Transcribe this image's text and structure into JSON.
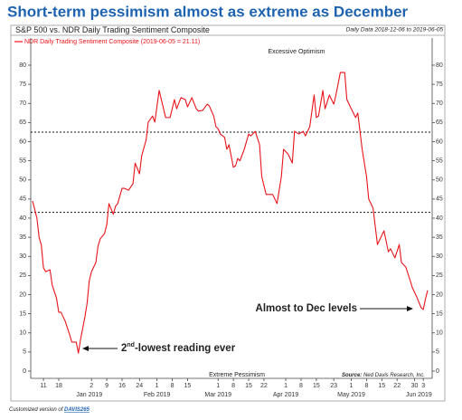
{
  "chart_data": {
    "type": "line",
    "title": "Short-term pessimism almost as extreme as December",
    "subtitle": "S&P 500 vs. NDR Daily Trading Sentiment Composite",
    "date_range": "Daily Data 2018-12-06 to 2019-06-05",
    "source_label": "Source:",
    "source": "Ned Davis Research, Inc.",
    "footer_prefix": "Customized version of",
    "footer_link": "DAVIS265",
    "top_label": "Excessive Optimism",
    "bottom_label": "Extreme Pessimism",
    "annotations": {
      "recent": "Almost to Dec levels",
      "low_num": "2",
      "low_sup": "nd",
      "low_rest": "-lowest reading ever"
    },
    "x": [
      "2018-12-06",
      "2018-12-08",
      "2018-12-09",
      "2018-12-10",
      "2018-12-11",
      "2018-12-12",
      "2018-12-14",
      "2018-12-15",
      "2018-12-17",
      "2018-12-18",
      "2018-12-19",
      "2018-12-21",
      "2018-12-23",
      "2018-12-24",
      "2018-12-26",
      "2018-12-27",
      "2018-12-28",
      "2018-12-30",
      "2018-12-31",
      "2019-01-01",
      "2019-01-02",
      "2019-01-04",
      "2019-01-05",
      "2019-01-06",
      "2019-01-08",
      "2019-01-09",
      "2019-01-10",
      "2019-01-12",
      "2019-01-13",
      "2019-01-14",
      "2019-01-16",
      "2019-01-17",
      "2019-01-19",
      "2019-01-21",
      "2019-01-22",
      "2019-01-24",
      "2019-01-25",
      "2019-01-27",
      "2019-01-28",
      "2019-01-30",
      "2019-01-31",
      "2019-02-02",
      "2019-02-04",
      "2019-02-05",
      "2019-02-07",
      "2019-02-09",
      "2019-02-10",
      "2019-02-12",
      "2019-02-14",
      "2019-02-15",
      "2019-02-17",
      "2019-02-19",
      "2019-02-20",
      "2019-02-22",
      "2019-02-24",
      "2019-02-25",
      "2019-02-27",
      "2019-02-28",
      "2019-03-01",
      "2019-03-02",
      "2019-03-04",
      "2019-03-05",
      "2019-03-06",
      "2019-03-08",
      "2019-03-09",
      "2019-03-10",
      "2019-03-11",
      "2019-03-13",
      "2019-03-15",
      "2019-03-16",
      "2019-03-18",
      "2019-03-20",
      "2019-03-21",
      "2019-03-23",
      "2019-03-25",
      "2019-03-26",
      "2019-03-28",
      "2019-03-30",
      "2019-03-31",
      "2019-04-02",
      "2019-04-04",
      "2019-04-05",
      "2019-04-07",
      "2019-04-09",
      "2019-04-10",
      "2019-04-12",
      "2019-04-14",
      "2019-04-15",
      "2019-04-16",
      "2019-04-18",
      "2019-04-19",
      "2019-04-21",
      "2019-04-23",
      "2019-04-24",
      "2019-04-26",
      "2019-04-28",
      "2019-04-29",
      "2019-05-01",
      "2019-05-03",
      "2019-05-04",
      "2019-05-06",
      "2019-05-08",
      "2019-05-09",
      "2019-05-11",
      "2019-05-13",
      "2019-05-14",
      "2019-05-16",
      "2019-05-18",
      "2019-05-19",
      "2019-05-21",
      "2019-05-23",
      "2019-05-24",
      "2019-05-26",
      "2019-05-28",
      "2019-05-29",
      "2019-05-31",
      "2019-06-02",
      "2019-06-03",
      "2019-06-04",
      "2019-06-05"
    ],
    "series": [
      {
        "name": "NDR Daily Trading Sentiment Composite (2019-06-05 = 21.11)",
        "color": "#e8141b",
        "values": [
          44.5,
          40,
          35,
          33,
          27,
          26,
          26.5,
          22.5,
          19,
          15.4,
          15.4,
          13,
          9.5,
          7.6,
          7.6,
          4.7,
          8.3,
          14.2,
          17.8,
          23.7,
          26,
          28.4,
          32.7,
          34.6,
          36,
          38.3,
          43.8,
          41,
          43.1,
          43.8,
          47.8,
          47.8,
          47.3,
          49,
          54.4,
          51.6,
          56.3,
          60.4,
          65.1,
          66.7,
          65.1,
          73.4,
          68.6,
          66.3,
          66.3,
          71,
          68.6,
          71.5,
          71,
          69.1,
          71.5,
          68.6,
          68,
          68.2,
          69.8,
          69.3,
          66.7,
          63.9,
          63.4,
          62,
          61.1,
          58,
          59.2,
          53.3,
          53.7,
          55.6,
          55,
          58,
          62,
          61.5,
          62.7,
          59.2,
          50.9,
          46.2,
          46.2,
          46.2,
          43.8,
          50.9,
          58,
          56.8,
          54.4,
          62.7,
          62,
          62.7,
          61.5,
          63.9,
          72.2,
          66.3,
          66.7,
          73.4,
          68.6,
          72.2,
          69.8,
          72.2,
          78.1,
          78.1,
          71,
          68.6,
          66.3,
          67.5,
          58,
          50.9,
          45,
          42.6,
          33.1,
          34.3,
          36.7,
          31.2,
          32,
          29.6,
          33.1,
          28.4,
          27.2,
          23.7,
          21.8,
          19.4,
          16.6,
          16.1,
          18.9,
          21.11
        ]
      }
    ],
    "reference_lines": [
      62.5,
      41.5
    ],
    "xlim": [
      "2018-12-06",
      "2019-06-05"
    ],
    "xticks": [
      {
        "value": "2018-12-11",
        "label": "11"
      },
      {
        "value": "2018-12-18",
        "label": "18"
      },
      {
        "value": "2019-01-02",
        "label": "2"
      },
      {
        "value": "2019-01-09",
        "label": "9"
      },
      {
        "value": "2019-01-16",
        "label": "16"
      },
      {
        "value": "2019-01-24",
        "label": "24"
      },
      {
        "value": "2019-02-01",
        "label": "1"
      },
      {
        "value": "2019-02-08",
        "label": "8"
      },
      {
        "value": "2019-02-15",
        "label": "15"
      },
      {
        "value": "2019-03-01",
        "label": "1"
      },
      {
        "value": "2019-03-08",
        "label": "8"
      },
      {
        "value": "2019-03-15",
        "label": "15"
      },
      {
        "value": "2019-03-22",
        "label": "22"
      },
      {
        "value": "2019-04-01",
        "label": "1"
      },
      {
        "value": "2019-04-08",
        "label": "8"
      },
      {
        "value": "2019-04-15",
        "label": "15"
      },
      {
        "value": "2019-04-23",
        "label": "23"
      },
      {
        "value": "2019-05-01",
        "label": "1"
      },
      {
        "value": "2019-05-08",
        "label": "8"
      },
      {
        "value": "2019-05-15",
        "label": "15"
      },
      {
        "value": "2019-05-22",
        "label": "22"
      },
      {
        "value": "2019-05-30",
        "label": "30"
      },
      {
        "value": "2019-06-03",
        "label": "3"
      }
    ],
    "month_ticks": [
      {
        "value": "2019-01-01",
        "label": "Jan 2019"
      },
      {
        "value": "2019-02-01",
        "label": "Feb 2019"
      },
      {
        "value": "2019-03-01",
        "label": "Mar 2019"
      },
      {
        "value": "2019-04-01",
        "label": "Apr 2019"
      },
      {
        "value": "2019-05-01",
        "label": "May 2019"
      },
      {
        "value": "2019-06-01",
        "label": "Jun 2019"
      }
    ],
    "ylim": [
      0,
      80
    ],
    "yticks": [
      0,
      5,
      10,
      15,
      20,
      25,
      30,
      35,
      40,
      45,
      50,
      55,
      60,
      65,
      70,
      75,
      80
    ],
    "right_axis": true,
    "grid": false
  }
}
